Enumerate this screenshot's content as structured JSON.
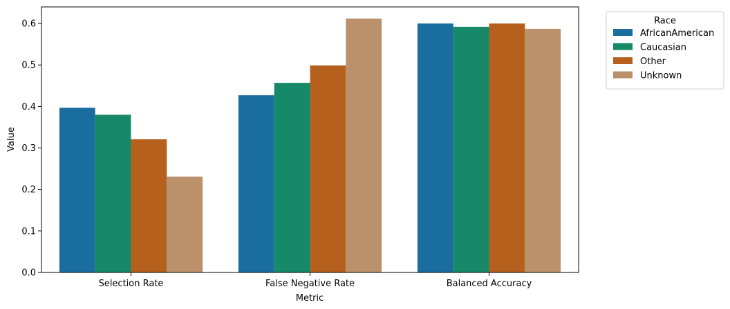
{
  "chart_data": {
    "type": "bar",
    "categories": [
      "Selection Rate",
      "False Negative Rate",
      "Balanced Accuracy"
    ],
    "series": [
      {
        "name": "AfricanAmerican",
        "color": "#1a6e9f",
        "values": [
          0.397,
          0.427,
          0.6
        ]
      },
      {
        "name": "Caucasian",
        "color": "#168a68",
        "values": [
          0.38,
          0.457,
          0.592
        ]
      },
      {
        "name": "Other",
        "color": "#b6601d",
        "values": [
          0.321,
          0.499,
          0.6
        ]
      },
      {
        "name": "Unknown",
        "color": "#bb916c",
        "values": [
          0.231,
          0.612,
          0.587
        ]
      }
    ],
    "xlabel": "Metric",
    "ylabel": "Value",
    "ylim": [
      0,
      0.64
    ],
    "yticks": [
      "0.0",
      "0.1",
      "0.2",
      "0.3",
      "0.4",
      "0.5",
      "0.6"
    ],
    "legend": {
      "title": "Race",
      "placement": "outside-top-right"
    },
    "grid": false
  }
}
